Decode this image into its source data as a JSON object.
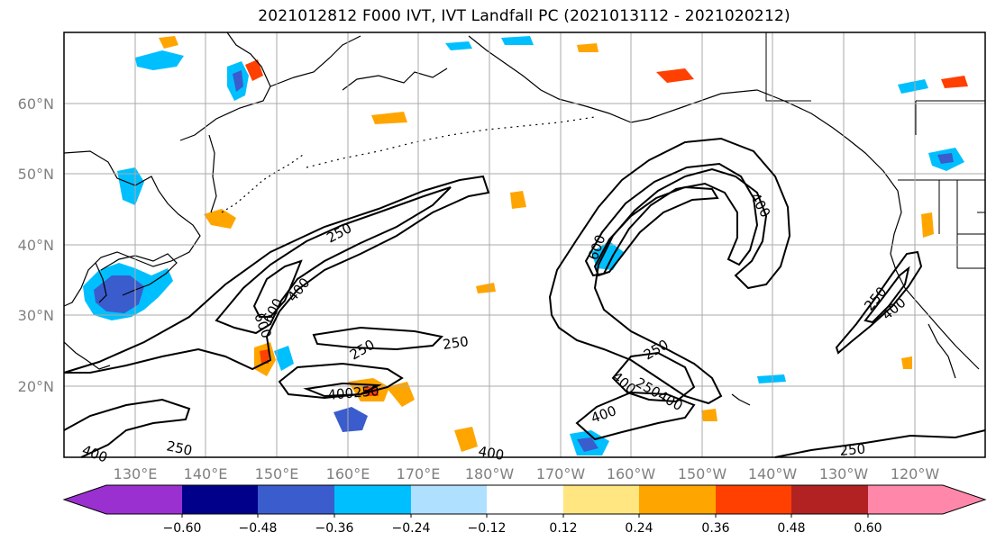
{
  "title": "2021012812 F000 IVT, IVT Landfall PC (2021013112 - 2021020212)",
  "lat_labels": [
    "60°N",
    "50°N",
    "40°N",
    "30°N",
    "20°N"
  ],
  "lon_labels": [
    "130°E",
    "140°E",
    "150°E",
    "160°E",
    "170°E",
    "180°W",
    "170°W",
    "160°W",
    "150°W",
    "140°W",
    "130°W",
    "120°W"
  ],
  "contour_labels": [
    "250",
    "250",
    "250",
    "250",
    "250",
    "250",
    "250",
    "400",
    "400",
    "400",
    "400",
    "400",
    "400",
    "400",
    "600",
    "600",
    "600",
    "400250",
    "250400"
  ],
  "colorbar": {
    "tick_labels": [
      "−0.60",
      "−0.48",
      "−0.36",
      "−0.24",
      "−0.12",
      "0.12",
      "0.24",
      "0.36",
      "0.48",
      "0.60"
    ],
    "colors": [
      "#9b30d0",
      "#00008b",
      "#3a5ccc",
      "#00bfff",
      "#b0e0ff",
      "#ffffff",
      "#ffe680",
      "#ffa500",
      "#ff4000",
      "#b22222",
      "#ff88aa"
    ]
  },
  "legend_meaning": {
    "contours": "IVT",
    "shading": "IVT Landfall PC"
  }
}
